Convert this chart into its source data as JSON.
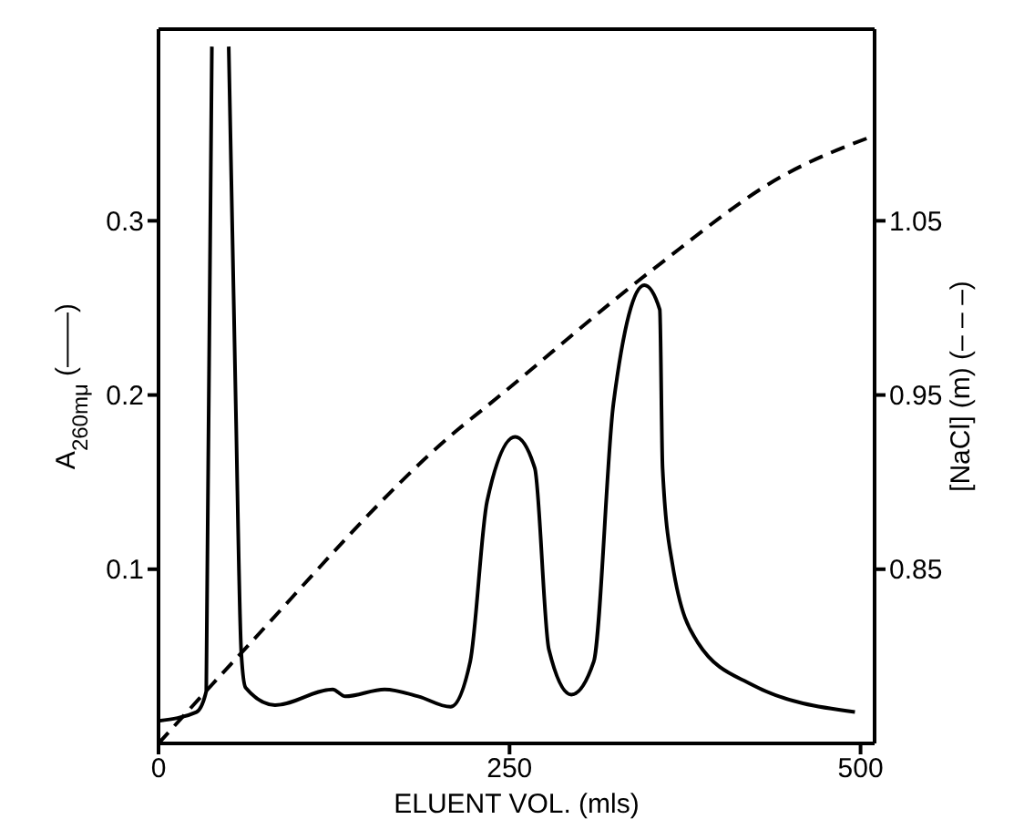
{
  "chart_data": {
    "type": "line",
    "xlabel": "ELUENT  VOL. (mls)",
    "ylabel": "A$_{260mμ}$ (——)",
    "y2label": "[NaCl] (m) (– – –)",
    "xlim": [
      0,
      510
    ],
    "xticks": [
      0,
      250,
      500
    ],
    "ylim": [
      0,
      0.41
    ],
    "yticks": [
      0.1,
      0.2,
      0.3
    ],
    "y2lim": [
      0.75,
      1.16
    ],
    "y2ticks": [
      0.85,
      0.95,
      1.05
    ],
    "marker": "none",
    "series": [
      {
        "color": "#000000",
        "line_style": "solid",
        "x": [
          0,
          27,
          34,
          38,
          44,
          50,
          55,
          59,
          62,
          83,
          124,
          133,
          161,
          185,
          208,
          222,
          234,
          254,
          268,
          278,
          294,
          310,
          324,
          346,
          357,
          359,
          366,
          384,
          422,
          496
        ],
        "values": [
          0.013,
          0.018,
          0.03,
          0.4,
          null,
          0.4,
          0.195,
          0.051,
          0.032,
          0.022,
          0.031,
          0.027,
          0.031,
          0.027,
          0.021,
          0.047,
          0.139,
          0.176,
          0.158,
          0.054,
          0.028,
          0.047,
          0.195,
          0.263,
          0.249,
          0.158,
          0.103,
          0.058,
          0.034,
          0.018
        ]
      },
      {
        "color": "#000000",
        "line_style": "dashed",
        "axis": "y2",
        "x": [
          0,
          59,
          213,
          236,
          352,
          445,
          510
        ],
        "values": [
          0.75,
          0.802,
          0.93,
          0.945,
          1.022,
          1.076,
          1.099
        ]
      }
    ]
  }
}
